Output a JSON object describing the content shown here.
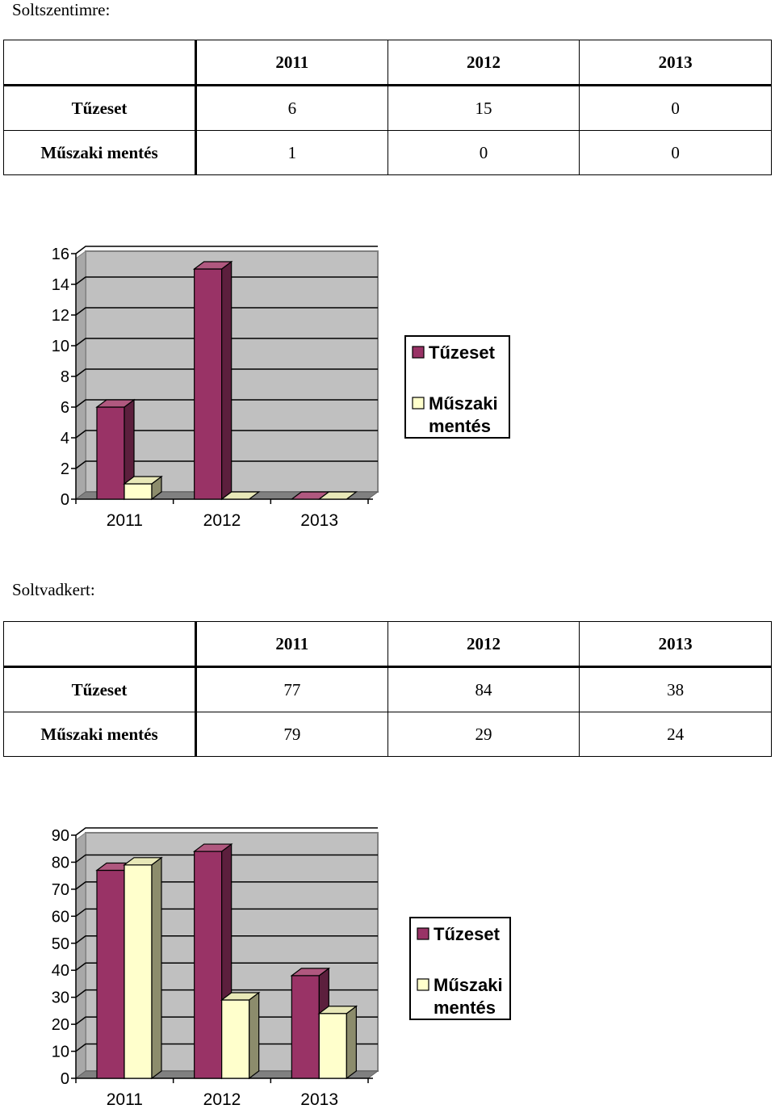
{
  "sections": [
    {
      "title": "Soltszentimre:",
      "table": {
        "header": [
          "",
          "2011",
          "2012",
          "2013"
        ],
        "rows": [
          {
            "label": "Tűzeset",
            "cells": [
              "6",
              "15",
              "0"
            ]
          },
          {
            "label": "Műszaki mentés",
            "cells": [
              "1",
              "0",
              "0"
            ]
          }
        ]
      }
    },
    {
      "title": "Soltvadkert:",
      "table": {
        "header": [
          "",
          "2011",
          "2012",
          "2013"
        ],
        "rows": [
          {
            "label": "Tűzeset",
            "cells": [
              "77",
              "84",
              "38"
            ]
          },
          {
            "label": "Műszaki mentés",
            "cells": [
              "79",
              "29",
              "24"
            ]
          }
        ]
      }
    }
  ],
  "colors": {
    "tuzeset": "#993366",
    "muszaki": "#ffffcc",
    "plot_bg": "#c0c0c0",
    "floor": "#808080"
  },
  "chart_data": [
    {
      "type": "bar",
      "categories": [
        "2011",
        "2012",
        "2013"
      ],
      "series": [
        {
          "name": "Tűzeset",
          "values": [
            6,
            15,
            0
          ]
        },
        {
          "name": "Műszaki mentés",
          "values": [
            1,
            0,
            0
          ]
        }
      ],
      "ylim": [
        0,
        16
      ],
      "yticks": [
        0,
        2,
        4,
        6,
        8,
        10,
        12,
        14,
        16
      ],
      "ytick_labels": [
        "0",
        "2",
        "4",
        "6",
        "8",
        "10",
        "12",
        "14",
        "16"
      ],
      "legend": [
        {
          "lines": [
            "Tűzeset"
          ]
        },
        {
          "lines": [
            "Műszaki",
            "mentés"
          ]
        }
      ],
      "legend_position": "right",
      "grid": true
    },
    {
      "type": "bar",
      "categories": [
        "2011",
        "2012",
        "2013"
      ],
      "series": [
        {
          "name": "Tűzeset",
          "values": [
            77,
            84,
            38
          ]
        },
        {
          "name": "Műszaki mentés",
          "values": [
            79,
            29,
            24
          ]
        }
      ],
      "ylim": [
        0,
        90
      ],
      "yticks": [
        0,
        10,
        20,
        30,
        40,
        50,
        60,
        70,
        80,
        90
      ],
      "ytick_labels": [
        "0",
        "10",
        "20",
        "30",
        "40",
        "50",
        "60",
        "70",
        "80",
        "90"
      ],
      "legend": [
        {
          "lines": [
            "Tűzeset"
          ]
        },
        {
          "lines": [
            "Műszaki",
            "mentés"
          ]
        }
      ],
      "legend_position": "right",
      "grid": true
    }
  ]
}
